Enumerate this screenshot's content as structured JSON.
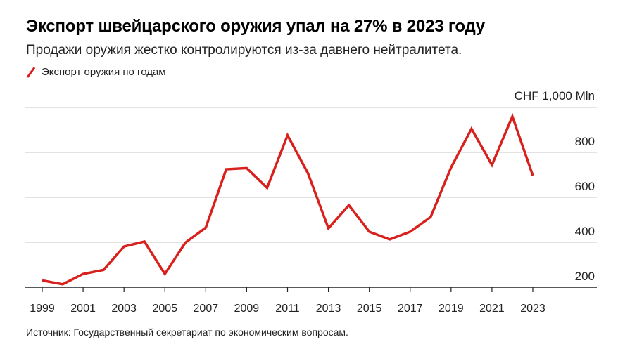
{
  "title": "Экспорт швейцарского оружия упал на 27% в 2023 году",
  "subtitle": "Продажи оружия жестко контролируются из-за давнего нейтралитета.",
  "source": "Источник: Государственный секретариат по экономическим вопросам.",
  "chart_data": {
    "type": "line",
    "title": "Экспорт швейцарского оружия упал на 27% в 2023 году",
    "unit_label": "CHF 1,000 Mln",
    "legend": "top-left",
    "grid": true,
    "color": "#d8201c",
    "ylim": [
      200,
      1000
    ],
    "yticks": [
      200,
      400,
      600,
      800
    ],
    "xticks": [
      "1999",
      "2001",
      "2003",
      "2005",
      "2007",
      "2009",
      "2011",
      "2013",
      "2015",
      "2017",
      "2019",
      "2021",
      "2023"
    ],
    "series": [
      {
        "name": "Экспорт оружия по годам",
        "x": [
          1999,
          2000,
          2001,
          2002,
          2003,
          2004,
          2005,
          2006,
          2007,
          2008,
          2009,
          2010,
          2011,
          2012,
          2013,
          2014,
          2015,
          2016,
          2017,
          2018,
          2019,
          2020,
          2021,
          2022,
          2023
        ],
        "values": [
          230,
          213,
          259,
          277,
          381,
          403,
          259,
          398,
          465,
          725,
          730,
          642,
          876,
          707,
          462,
          565,
          447,
          413,
          447,
          512,
          733,
          905,
          744,
          960,
          697
        ]
      }
    ]
  }
}
